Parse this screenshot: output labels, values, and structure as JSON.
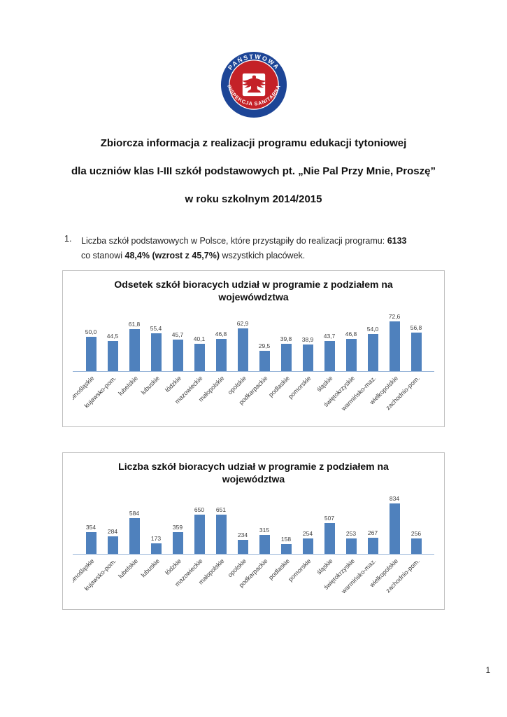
{
  "header": {
    "logo": {
      "top_text": "PAŃSTWOWA",
      "bottom_text": "INSPEKCJA SANITARNA",
      "ring_color": "#1d4596",
      "center_color": "#c42127",
      "eagle_color": "#c42127"
    },
    "title_lines": [
      "Zbiorcza informacja z realizacji programu edukacji tytoniowej",
      "dla uczniów klas I-III szkół podstawowych pt. „Nie Pal Przy Mnie, Proszę”",
      "w roku szkolnym 2014/2015"
    ]
  },
  "body": {
    "item_number": "1.",
    "line1_text": "Liczba szkół podstawowych w Polsce, które przystąpiły do realizacji programu: ",
    "line1_bold": "6133",
    "line2_pre": "co stanowi ",
    "line2_bold": "48,4% (wzrost z 45,7%)",
    "line2_post": " wszystkich placówek."
  },
  "chart_data": [
    {
      "type": "bar",
      "title": "Odsetek szkół bioracych udział w programie z podziałem na wojewówdztwa",
      "categories": [
        "dolnośląskie",
        "kujawsko-pom.",
        "lubelskie",
        "lubuskie",
        "łódzkie",
        "mazowieckie",
        "małopolskie",
        "opolskie",
        "podkarpackie",
        "podlaskie",
        "pomorskie",
        "śląskie",
        "świętokrzyskie",
        "warmińsko-maz.",
        "wielkopolskie",
        "zachodnio-pom."
      ],
      "values": [
        50.0,
        44.5,
        61.8,
        55.4,
        45.7,
        40.1,
        46.8,
        62.9,
        29.5,
        39.8,
        38.9,
        43.7,
        46.8,
        54.0,
        72.6,
        56.8
      ],
      "value_labels": [
        "50,0",
        "44,5",
        "61,8",
        "55,4",
        "45,7",
        "40,1",
        "46,8",
        "62,9",
        "29,5",
        "39,8",
        "38,9",
        "43,7",
        "46,8",
        "54,0",
        "72,6",
        "56,8"
      ],
      "xlabel": "",
      "ylabel": "",
      "ylim": [
        0,
        80
      ],
      "bar_color": "#4f81bd",
      "legend": "none",
      "grid": "off"
    },
    {
      "type": "bar",
      "title": "Liczba szkół bioracych udział w programie z podziałem na województwa",
      "categories": [
        "dolnośląskie",
        "kujawsko-pom.",
        "lubelskie",
        "lubuskie",
        "łódzkie",
        "mazowieckie",
        "małopolskie",
        "opolskie",
        "podkarpackie",
        "podlaskie",
        "pomorskie",
        "śląskie",
        "świętokrzyskie",
        "warmińsko-maz.",
        "wielkopolskie",
        "zachodnio-pom."
      ],
      "values": [
        354,
        284,
        584,
        173,
        359,
        650,
        651,
        234,
        315,
        158,
        254,
        507,
        253,
        267,
        834,
        256
      ],
      "value_labels": [
        "354",
        "284",
        "584",
        "173",
        "359",
        "650",
        "651",
        "234",
        "315",
        "158",
        "254",
        "507",
        "253",
        "267",
        "834",
        "256"
      ],
      "xlabel": "",
      "ylabel": "",
      "ylim": [
        0,
        900
      ],
      "bar_color": "#4f81bd",
      "legend": "none",
      "grid": "off"
    }
  ],
  "footer": {
    "page_number": "1"
  }
}
